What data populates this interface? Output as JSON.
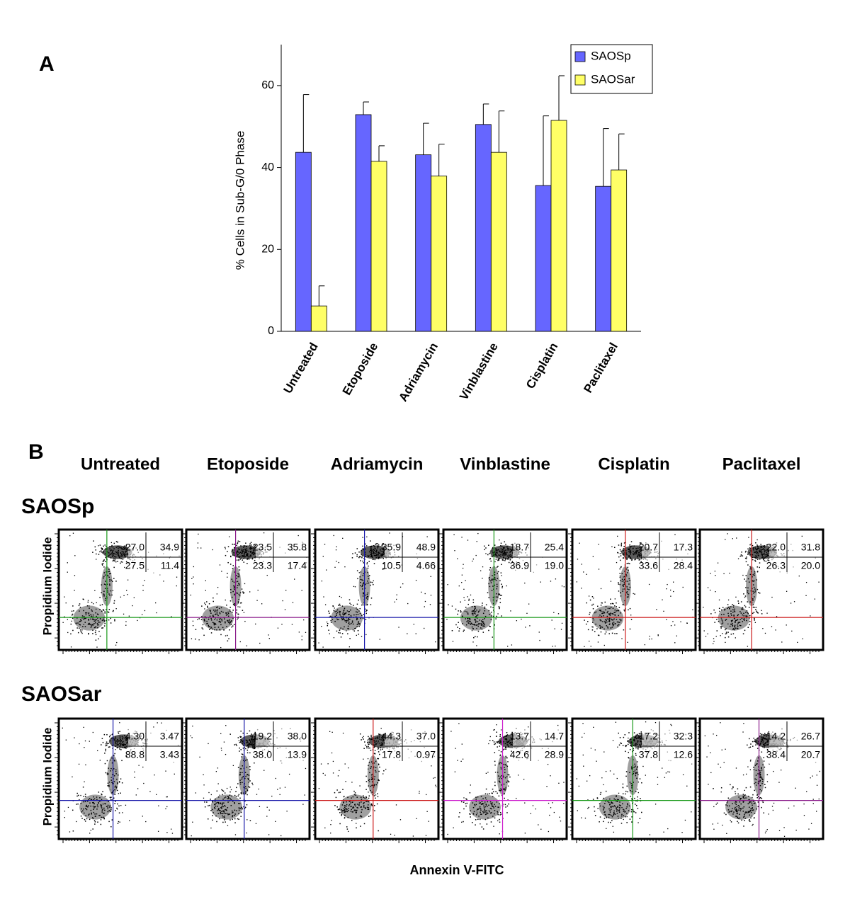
{
  "panel_a_label": "A",
  "chart_data": {
    "type": "bar",
    "y_label": "% Cells in Sub-G/0 Phase",
    "categories": [
      "Untreated",
      "Etoposide",
      "Adriamycin",
      "Vinblastine",
      "Cisplatin",
      "Paclitaxel"
    ],
    "series": [
      {
        "name": "SAOSp",
        "color": "#6666ff",
        "values": [
          43.7,
          52.9,
          43.1,
          50.5,
          35.6,
          35.4
        ],
        "errors": [
          14.1,
          3.1,
          7.7,
          5.0,
          17.0,
          14.1
        ]
      },
      {
        "name": "SAOSar",
        "color": "#ffff66",
        "values": [
          6.2,
          41.5,
          37.9,
          43.7,
          51.5,
          39.4
        ],
        "errors": [
          4.9,
          3.8,
          7.8,
          10.1,
          10.9,
          8.8
        ]
      }
    ],
    "ylim": [
      0,
      70
    ],
    "yticks": [
      0,
      20,
      40,
      60
    ],
    "legend": "upper right"
  },
  "panel_b": {
    "label": "B",
    "columns": [
      "Untreated",
      "Etoposide",
      "Adriamycin",
      "Vinblastine",
      "Cisplatin",
      "Paclitaxel"
    ],
    "y_label": "Propidium Iodide",
    "x_label": "Annexin V-FITC",
    "rows": [
      {
        "name": "SAOSp",
        "quadrants": [
          [
            "27.0",
            "34.9",
            "27.5",
            "11.4"
          ],
          [
            "23.5",
            "35.8",
            "23.3",
            "17.4"
          ],
          [
            "35.9",
            "48.9",
            "10.5",
            "4.66"
          ],
          [
            "18.7",
            "25.4",
            "36.9",
            "19.0"
          ],
          [
            "20.7",
            "17.3",
            "33.6",
            "28.4"
          ],
          [
            "22.0",
            "31.8",
            "26.3",
            "20.0"
          ]
        ]
      },
      {
        "name": "SAOSar",
        "quadrants": [
          [
            "4.30",
            "3.47",
            "88.8",
            "3.43"
          ],
          [
            "19.2",
            "38.0",
            "38.0",
            "13.9"
          ],
          [
            "44.3",
            "37.0",
            "17.8",
            "0.97"
          ],
          [
            "13.7",
            "14.7",
            "42.6",
            "28.9"
          ],
          [
            "17.2",
            "32.3",
            "37.8",
            "12.6"
          ],
          [
            "14.2",
            "26.7",
            "38.4",
            "20.7"
          ]
        ]
      }
    ]
  }
}
